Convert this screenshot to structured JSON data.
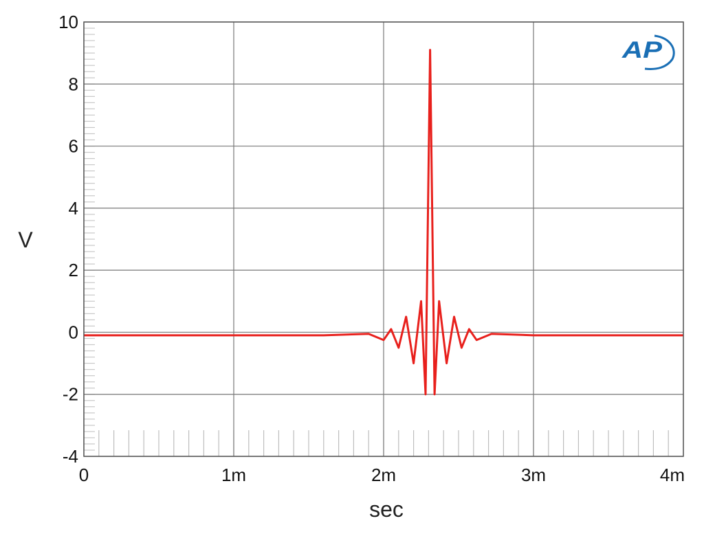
{
  "chart_data": {
    "type": "line",
    "title": "",
    "xlabel": "sec",
    "ylabel": "V",
    "xlim": [
      0,
      0.004
    ],
    "ylim": [
      -4,
      10
    ],
    "x_ticks": [
      {
        "value": 0,
        "label": "0"
      },
      {
        "value": 0.001,
        "label": "1m"
      },
      {
        "value": 0.002,
        "label": "2m"
      },
      {
        "value": 0.003,
        "label": "3m"
      },
      {
        "value": 0.004,
        "label": "4m"
      }
    ],
    "y_ticks": [
      {
        "value": 10,
        "label": "10"
      },
      {
        "value": 8,
        "label": "8"
      },
      {
        "value": 6,
        "label": "6"
      },
      {
        "value": 4,
        "label": "4"
      },
      {
        "value": 2,
        "label": "2"
      },
      {
        "value": 0,
        "label": "0"
      },
      {
        "value": -2,
        "label": "-2"
      },
      {
        "value": -4,
        "label": "-4"
      }
    ],
    "grid": true,
    "series": [
      {
        "color": "#e8201c",
        "x": [
          0,
          0.0016,
          0.0019,
          0.002,
          0.00205,
          0.0021,
          0.00215,
          0.0022,
          0.00225,
          0.00228,
          0.00231,
          0.00234,
          0.00237,
          0.00242,
          0.00247,
          0.00252,
          0.00257,
          0.00262,
          0.00272,
          0.003,
          0.004
        ],
        "y": [
          -0.1,
          -0.1,
          -0.05,
          -0.25,
          0.1,
          -0.5,
          0.5,
          -1.0,
          1.0,
          -2.0,
          9.1,
          -2.0,
          1.0,
          -1.0,
          0.5,
          -0.5,
          0.1,
          -0.25,
          -0.05,
          -0.1,
          -0.1
        ]
      }
    ]
  },
  "logo": {
    "text": "AP",
    "color": "#1a6fb5"
  }
}
